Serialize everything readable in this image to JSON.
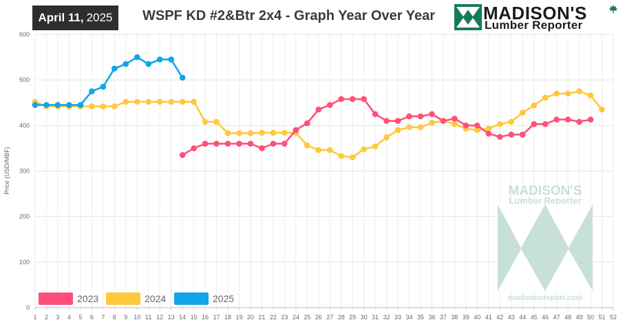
{
  "header": {
    "date_month_day": "April 11,",
    "date_year": "2025",
    "title": "WSPF KD #2&Btr 2x4 - Graph Year Over Year"
  },
  "logo": {
    "wordmark": "MADISON'S",
    "subtitle": "Lumber Reporter",
    "icon": "madisons-mountain-logo",
    "leaf_icon": "maple-leaf-icon"
  },
  "watermark": {
    "wordmark": "MADISON'S",
    "subtitle": "Lumber Reporter",
    "url": "madisonsreport.com"
  },
  "colors": {
    "series_2023": "#ff4f7b",
    "series_2024": "#ffc83d",
    "series_2025": "#0ea6e9",
    "logo_green": "#157a5b",
    "watermark_green": "#c8e1d6"
  },
  "chart_data": {
    "type": "line",
    "title": "WSPF KD #2&Btr 2x4 - Graph Year Over Year",
    "xlabel": "",
    "ylabel": "Price (USD/MBF)",
    "x": [
      1,
      2,
      3,
      4,
      5,
      6,
      7,
      8,
      9,
      10,
      11,
      12,
      13,
      14,
      15,
      16,
      17,
      18,
      19,
      20,
      21,
      22,
      23,
      24,
      25,
      26,
      27,
      28,
      29,
      30,
      31,
      32,
      33,
      34,
      35,
      36,
      37,
      38,
      39,
      40,
      41,
      42,
      43,
      44,
      45,
      46,
      47,
      48,
      49,
      50,
      51,
      52
    ],
    "xlim": [
      1,
      52
    ],
    "ylim": [
      0,
      600
    ],
    "yticks": [
      0,
      100,
      200,
      300,
      400,
      500,
      600
    ],
    "grid": true,
    "legend_position": "bottom-left",
    "series": [
      {
        "name": "2023",
        "x": [
          14,
          15,
          16,
          17,
          18,
          19,
          20,
          21,
          22,
          23,
          24,
          25,
          26,
          27,
          28,
          29,
          30,
          31,
          32,
          33,
          34,
          35,
          36,
          37,
          38,
          39,
          40,
          41,
          42,
          43,
          44,
          45,
          46,
          47,
          48,
          49,
          50
        ],
        "values": [
          335,
          350,
          360,
          360,
          360,
          360,
          360,
          350,
          360,
          360,
          390,
          405,
          435,
          445,
          458,
          458,
          458,
          425,
          410,
          410,
          420,
          420,
          425,
          410,
          415,
          400,
          400,
          382,
          375,
          380,
          380,
          403,
          403,
          413,
          413,
          408,
          413
        ]
      },
      {
        "name": "2024",
        "x": [
          1,
          2,
          3,
          4,
          5,
          6,
          7,
          8,
          9,
          10,
          11,
          12,
          13,
          14,
          15,
          16,
          17,
          18,
          19,
          20,
          21,
          22,
          23,
          24,
          25,
          26,
          27,
          28,
          29,
          30,
          31,
          32,
          33,
          34,
          35,
          36,
          37,
          38,
          39,
          40,
          41,
          42,
          43,
          44,
          45,
          46,
          47,
          48,
          49,
          50,
          51
        ],
        "values": [
          452,
          442,
          442,
          442,
          442,
          442,
          442,
          442,
          452,
          452,
          452,
          452,
          452,
          452,
          452,
          408,
          408,
          383,
          383,
          383,
          384,
          384,
          384,
          384,
          356,
          346,
          346,
          333,
          330,
          348,
          354,
          374,
          390,
          396,
          396,
          406,
          410,
          403,
          393,
          390,
          393,
          403,
          408,
          428,
          444,
          461,
          470,
          470,
          475,
          466,
          435
        ]
      },
      {
        "name": "2025",
        "x": [
          1,
          2,
          3,
          4,
          5,
          6,
          7,
          8,
          9,
          10,
          11,
          12,
          13,
          14
        ],
        "values": [
          445,
          445,
          445,
          445,
          445,
          475,
          485,
          525,
          535,
          550,
          535,
          545,
          545,
          505
        ]
      }
    ]
  }
}
